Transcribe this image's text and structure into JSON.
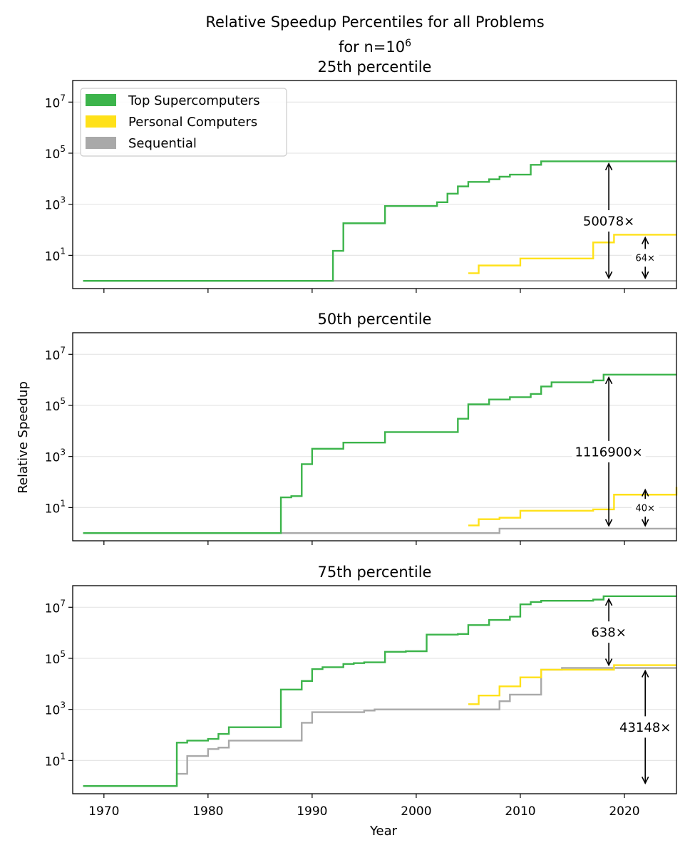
{
  "title": {
    "line1": "Relative Speedup Percentiles for all Problems",
    "line2_prefix": "for n=10",
    "line2_sup": "6"
  },
  "ylabel": "Relative Speedup",
  "xlabel": "Year",
  "legend": [
    {
      "name": "Top Supercomputers",
      "color": "#3cb44b"
    },
    {
      "name": "Personal Computers",
      "color": "#ffe119"
    },
    {
      "name": "Sequential",
      "color": "#a9a9a9"
    }
  ],
  "chart_data": [
    {
      "type": "line",
      "step": "post",
      "subtitle": "25th percentile",
      "yscale": "log",
      "xlim": [
        1967,
        2025
      ],
      "ylim": [
        0.5,
        70000000.0
      ],
      "grid": "y",
      "legend_position": "top-left",
      "series": [
        {
          "name": "Top Supercomputers",
          "x": [
            1968,
            1992,
            1993,
            1997,
            2002,
            2003,
            2004,
            2005,
            2007,
            2008,
            2009,
            2011,
            2012,
            2025
          ],
          "y": [
            1,
            15,
            180,
            850,
            1200,
            2600,
            5000,
            7500,
            9500,
            12000,
            14500,
            35000,
            48000,
            48000
          ]
        },
        {
          "name": "Personal Computers",
          "x": [
            2005,
            2006,
            2010,
            2017,
            2019,
            2025
          ],
          "y": [
            2,
            4,
            7.5,
            32,
            64,
            64
          ]
        },
        {
          "name": "Sequential",
          "x": [
            1968,
            2025
          ],
          "y": [
            1,
            1
          ]
        }
      ],
      "annotations": [
        {
          "label": "50078×",
          "x": 2018.5,
          "y_from": 1,
          "y_to": 50078,
          "size": "large"
        },
        {
          "label": "64×",
          "x": 2022,
          "y_from": 1,
          "y_to": 64,
          "size": "small"
        }
      ]
    },
    {
      "type": "line",
      "step": "post",
      "subtitle": "50th percentile",
      "yscale": "log",
      "xlim": [
        1967,
        2025
      ],
      "ylim": [
        0.5,
        70000000.0
      ],
      "grid": "y",
      "series": [
        {
          "name": "Top Supercomputers",
          "x": [
            1968,
            1987,
            1988,
            1989,
            1990,
            1993,
            1997,
            2004,
            2005,
            2007,
            2009,
            2011,
            2012,
            2013,
            2017,
            2018,
            2025
          ],
          "y": [
            1,
            25,
            28,
            500,
            2000,
            3500,
            9000,
            30000,
            110000,
            170000,
            210000,
            280000,
            550000,
            800000,
            950000,
            1600000,
            1600000
          ]
        },
        {
          "name": "Personal Computers",
          "x": [
            2005,
            2006,
            2008,
            2010,
            2017,
            2019,
            2025
          ],
          "y": [
            2,
            3.5,
            4,
            7.5,
            8.5,
            32,
            64
          ]
        },
        {
          "name": "Sequential",
          "x": [
            1968,
            2008,
            2025
          ],
          "y": [
            1,
            1.5,
            1.5
          ]
        }
      ],
      "annotations": [
        {
          "label": "1116900×",
          "x": 2018.5,
          "y_from": 1.5,
          "y_to": 1600000,
          "size": "large"
        },
        {
          "label": "40×",
          "x": 2022,
          "y_from": 1.5,
          "y_to": 64,
          "size": "small"
        }
      ]
    },
    {
      "type": "line",
      "step": "post",
      "subtitle": "75th percentile",
      "yscale": "log",
      "xlim": [
        1967,
        2025
      ],
      "ylim": [
        0.5,
        70000000.0
      ],
      "grid": "y",
      "x_ticks": [
        1970,
        1980,
        1990,
        2000,
        2010,
        2020
      ],
      "series": [
        {
          "name": "Top Supercomputers",
          "x": [
            1968,
            1977,
            1978,
            1980,
            1981,
            1982,
            1987,
            1989,
            1990,
            1991,
            1993,
            1994,
            1995,
            1997,
            1999,
            2001,
            2004,
            2005,
            2007,
            2009,
            2010,
            2011,
            2012,
            2017,
            2018,
            2025
          ],
          "y": [
            1,
            50,
            60,
            70,
            110,
            200,
            6000,
            13000,
            38000,
            45000,
            60000,
            65000,
            70000,
            180000,
            190000,
            850000,
            900000,
            2000000,
            3200000,
            4300000,
            13000000,
            16000000,
            18000000,
            20000000,
            27000000,
            27000000
          ]
        },
        {
          "name": "Personal Computers",
          "x": [
            2005,
            2006,
            2008,
            2010,
            2012,
            2019,
            2025
          ],
          "y": [
            1600,
            3500,
            8000,
            18000,
            36000,
            54000,
            54000
          ]
        },
        {
          "name": "Sequential",
          "x": [
            1968,
            1977,
            1978,
            1980,
            1981,
            1982,
            1989,
            1990,
            1995,
            1996,
            2008,
            2009,
            2012,
            2014,
            2025
          ],
          "y": [
            1,
            3,
            15,
            28,
            32,
            60,
            300,
            780,
            900,
            1000,
            2100,
            3800,
            36000,
            42000,
            42000
          ]
        }
      ],
      "annotations": [
        {
          "label": "638×",
          "x": 2018.5,
          "y_from": 42000,
          "y_to": 27000000,
          "size": "large"
        },
        {
          "label": "43148×",
          "x": 2022,
          "y_from": 1,
          "y_to": 42000,
          "size": "large"
        }
      ]
    }
  ]
}
